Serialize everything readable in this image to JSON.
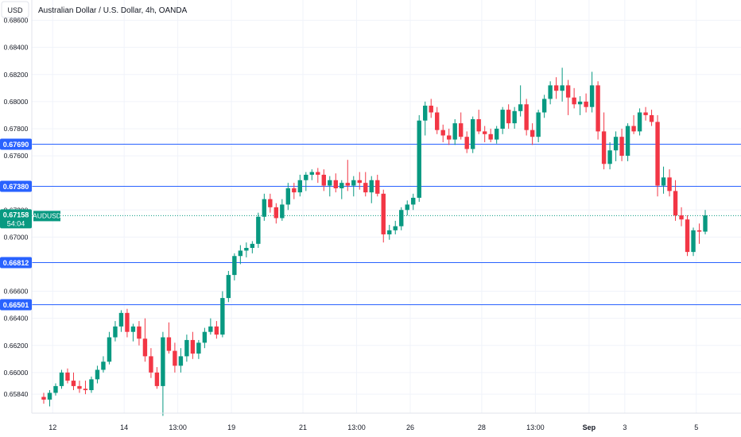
{
  "header": {
    "currency_button": "USD",
    "title": "Australian Dollar / U.S. Dollar, 4h, OANDA"
  },
  "colors": {
    "up": "#089981",
    "down": "#f23645",
    "hline": "#2962ff",
    "grid": "#f0f3fa",
    "axis_text": "#131722",
    "current_price_bg": "#089981"
  },
  "current_price": {
    "value": 0.67158,
    "label": "0.67158",
    "symbol": "AUDUSD",
    "countdown": "54:04"
  },
  "chart_data": {
    "type": "candlestick",
    "title": "Australian Dollar / U.S. Dollar, 4h, OANDA",
    "ylim": [
      0.657,
      0.6875
    ],
    "xlim": [
      -2,
      117
    ],
    "y_ticks": [
      "0.68600",
      "0.68400",
      "0.68200",
      "0.68000",
      "0.67800",
      "0.67600",
      "0.67200",
      "0.67000",
      "0.66600",
      "0.66400",
      "0.66200",
      "0.66000",
      "0.65840"
    ],
    "x_ticks": [
      {
        "label": "12",
        "x": 1.5
      },
      {
        "label": "14",
        "x": 13.5
      },
      {
        "label": "13:00",
        "x": 22.5
      },
      {
        "label": "19",
        "x": 31.5
      },
      {
        "label": "21",
        "x": 43.5
      },
      {
        "label": "13:00",
        "x": 52.5
      },
      {
        "label": "26",
        "x": 61.5
      },
      {
        "label": "28",
        "x": 73.5
      },
      {
        "label": "13:00",
        "x": 82.5
      },
      {
        "label": "Sep",
        "x": 91.5
      },
      {
        "label": "3",
        "x": 97.5
      },
      {
        "label": "5",
        "x": 109.5
      }
    ],
    "horizontal_lines": [
      {
        "value": 0.6769,
        "label": "0.67690"
      },
      {
        "value": 0.6738,
        "label": "0.67380"
      },
      {
        "value": 0.66812,
        "label": "0.66812"
      },
      {
        "value": 0.66501,
        "label": "0.66501"
      }
    ],
    "candles": [
      [
        0.6582,
        0.6585,
        0.6577,
        0.658
      ],
      [
        0.658,
        0.6587,
        0.6575,
        0.6585
      ],
      [
        0.6585,
        0.6592,
        0.6583,
        0.659
      ],
      [
        0.659,
        0.6602,
        0.6588,
        0.66
      ],
      [
        0.66,
        0.6603,
        0.6592,
        0.6594
      ],
      [
        0.6594,
        0.66,
        0.6587,
        0.659
      ],
      [
        0.659,
        0.6594,
        0.6585,
        0.6588
      ],
      [
        0.6588,
        0.6594,
        0.6584,
        0.6587
      ],
      [
        0.6587,
        0.6597,
        0.6585,
        0.6595
      ],
      [
        0.6595,
        0.6605,
        0.6592,
        0.6602
      ],
      [
        0.6602,
        0.6612,
        0.66,
        0.6608
      ],
      [
        0.6608,
        0.663,
        0.6606,
        0.6626
      ],
      [
        0.6626,
        0.6638,
        0.6623,
        0.6634
      ],
      [
        0.6634,
        0.6646,
        0.663,
        0.6644
      ],
      [
        0.6644,
        0.6647,
        0.6626,
        0.663
      ],
      [
        0.663,
        0.6636,
        0.6623,
        0.6634
      ],
      [
        0.6634,
        0.6638,
        0.662,
        0.6625
      ],
      [
        0.6625,
        0.664,
        0.6608,
        0.6612
      ],
      [
        0.6612,
        0.6618,
        0.6596,
        0.66
      ],
      [
        0.66,
        0.6604,
        0.6588,
        0.659
      ],
      [
        0.659,
        0.663,
        0.6568,
        0.6626
      ],
      [
        0.6626,
        0.6637,
        0.6614,
        0.6616
      ],
      [
        0.6616,
        0.6622,
        0.66,
        0.6605
      ],
      [
        0.6605,
        0.6618,
        0.66,
        0.6612
      ],
      [
        0.6612,
        0.6628,
        0.6608,
        0.6624
      ],
      [
        0.6624,
        0.663,
        0.661,
        0.6614
      ],
      [
        0.6614,
        0.6624,
        0.661,
        0.6622
      ],
      [
        0.6622,
        0.6633,
        0.6618,
        0.663
      ],
      [
        0.663,
        0.664,
        0.6628,
        0.6634
      ],
      [
        0.6634,
        0.6638,
        0.6625,
        0.6628
      ],
      [
        0.6628,
        0.666,
        0.6626,
        0.6655
      ],
      [
        0.6655,
        0.6675,
        0.6652,
        0.6672
      ],
      [
        0.6672,
        0.6688,
        0.6668,
        0.6686
      ],
      [
        0.6686,
        0.6694,
        0.668,
        0.669
      ],
      [
        0.669,
        0.6696,
        0.6685,
        0.6692
      ],
      [
        0.6692,
        0.6697,
        0.6688,
        0.6695
      ],
      [
        0.6695,
        0.6718,
        0.6692,
        0.6715
      ],
      [
        0.6715,
        0.6732,
        0.6712,
        0.6728
      ],
      [
        0.6728,
        0.6732,
        0.6718,
        0.6722
      ],
      [
        0.6722,
        0.6725,
        0.671,
        0.6714
      ],
      [
        0.6714,
        0.6728,
        0.6712,
        0.6724
      ],
      [
        0.6724,
        0.674,
        0.672,
        0.6736
      ],
      [
        0.6736,
        0.674,
        0.6728,
        0.6733
      ],
      [
        0.6733,
        0.6746,
        0.673,
        0.6742
      ],
      [
        0.6742,
        0.6748,
        0.6734,
        0.6746
      ],
      [
        0.6746,
        0.675,
        0.6742,
        0.6748
      ],
      [
        0.6748,
        0.6751,
        0.674,
        0.6746
      ],
      [
        0.6746,
        0.675,
        0.6734,
        0.6738
      ],
      [
        0.6738,
        0.6745,
        0.673,
        0.6742
      ],
      [
        0.6742,
        0.6747,
        0.6733,
        0.6736
      ],
      [
        0.6736,
        0.6742,
        0.6728,
        0.674
      ],
      [
        0.674,
        0.6757,
        0.6734,
        0.6738
      ],
      [
        0.6738,
        0.6745,
        0.673,
        0.6742
      ],
      [
        0.6742,
        0.6748,
        0.6735,
        0.674
      ],
      [
        0.674,
        0.6748,
        0.673,
        0.6733
      ],
      [
        0.6733,
        0.6745,
        0.6725,
        0.6742
      ],
      [
        0.6742,
        0.6746,
        0.673,
        0.6732
      ],
      [
        0.6732,
        0.6735,
        0.6696,
        0.6702
      ],
      [
        0.6702,
        0.6709,
        0.6698,
        0.6705
      ],
      [
        0.6705,
        0.6712,
        0.6702,
        0.6708
      ],
      [
        0.6708,
        0.6722,
        0.6705,
        0.672
      ],
      [
        0.672,
        0.6727,
        0.6716,
        0.6724
      ],
      [
        0.6724,
        0.6732,
        0.672,
        0.6729
      ],
      [
        0.6729,
        0.679,
        0.6726,
        0.6786
      ],
      [
        0.6786,
        0.68,
        0.6775,
        0.6797
      ],
      [
        0.6797,
        0.6802,
        0.6788,
        0.6792
      ],
      [
        0.6792,
        0.6796,
        0.6776,
        0.6779
      ],
      [
        0.6779,
        0.6783,
        0.677,
        0.6775
      ],
      [
        0.6775,
        0.678,
        0.6768,
        0.6772
      ],
      [
        0.6772,
        0.6787,
        0.6768,
        0.6784
      ],
      [
        0.6784,
        0.6792,
        0.6772,
        0.6774
      ],
      [
        0.6774,
        0.6778,
        0.6762,
        0.6765
      ],
      [
        0.6765,
        0.6789,
        0.6762,
        0.6787
      ],
      [
        0.6787,
        0.6794,
        0.6776,
        0.6778
      ],
      [
        0.6778,
        0.6782,
        0.677,
        0.6776
      ],
      [
        0.6776,
        0.678,
        0.677,
        0.6772
      ],
      [
        0.6772,
        0.6782,
        0.6769,
        0.678
      ],
      [
        0.678,
        0.6796,
        0.6776,
        0.6794
      ],
      [
        0.6794,
        0.6798,
        0.678,
        0.6784
      ],
      [
        0.6784,
        0.6796,
        0.678,
        0.6793
      ],
      [
        0.6793,
        0.6812,
        0.6789,
        0.6798
      ],
      [
        0.6798,
        0.6802,
        0.6775,
        0.6779
      ],
      [
        0.6779,
        0.6784,
        0.6768,
        0.6774
      ],
      [
        0.6774,
        0.6794,
        0.677,
        0.6792
      ],
      [
        0.6792,
        0.6805,
        0.6788,
        0.6802
      ],
      [
        0.6802,
        0.6815,
        0.6798,
        0.6812
      ],
      [
        0.6812,
        0.6818,
        0.6802,
        0.6808
      ],
      [
        0.6808,
        0.6825,
        0.68,
        0.6812
      ],
      [
        0.6812,
        0.6816,
        0.679,
        0.6803
      ],
      [
        0.6803,
        0.681,
        0.6795,
        0.6798
      ],
      [
        0.6798,
        0.6804,
        0.679,
        0.68
      ],
      [
        0.68,
        0.6806,
        0.6792,
        0.6796
      ],
      [
        0.6796,
        0.6822,
        0.6792,
        0.6812
      ],
      [
        0.6812,
        0.6815,
        0.6772,
        0.6778
      ],
      [
        0.6778,
        0.6792,
        0.675,
        0.6754
      ],
      [
        0.6754,
        0.677,
        0.675,
        0.6764
      ],
      [
        0.6764,
        0.6778,
        0.6756,
        0.6774
      ],
      [
        0.6774,
        0.678,
        0.6756,
        0.676
      ],
      [
        0.676,
        0.6784,
        0.6756,
        0.6782
      ],
      [
        0.6782,
        0.679,
        0.6776,
        0.6778
      ],
      [
        0.6778,
        0.6795,
        0.6775,
        0.6792
      ],
      [
        0.6792,
        0.6796,
        0.6786,
        0.679
      ],
      [
        0.679,
        0.6794,
        0.6782,
        0.6785
      ],
      [
        0.6785,
        0.679,
        0.673,
        0.6738
      ],
      [
        0.6738,
        0.6752,
        0.6732,
        0.6744
      ],
      [
        0.6744,
        0.675,
        0.673,
        0.6734
      ],
      [
        0.6734,
        0.6742,
        0.6712,
        0.6716
      ],
      [
        0.6716,
        0.6722,
        0.6708,
        0.6713
      ],
      [
        0.6713,
        0.6716,
        0.6686,
        0.6689
      ],
      [
        0.6689,
        0.6707,
        0.6686,
        0.6705
      ],
      [
        0.6705,
        0.671,
        0.6695,
        0.6704
      ],
      [
        0.6704,
        0.672,
        0.6702,
        0.6716
      ]
    ]
  }
}
